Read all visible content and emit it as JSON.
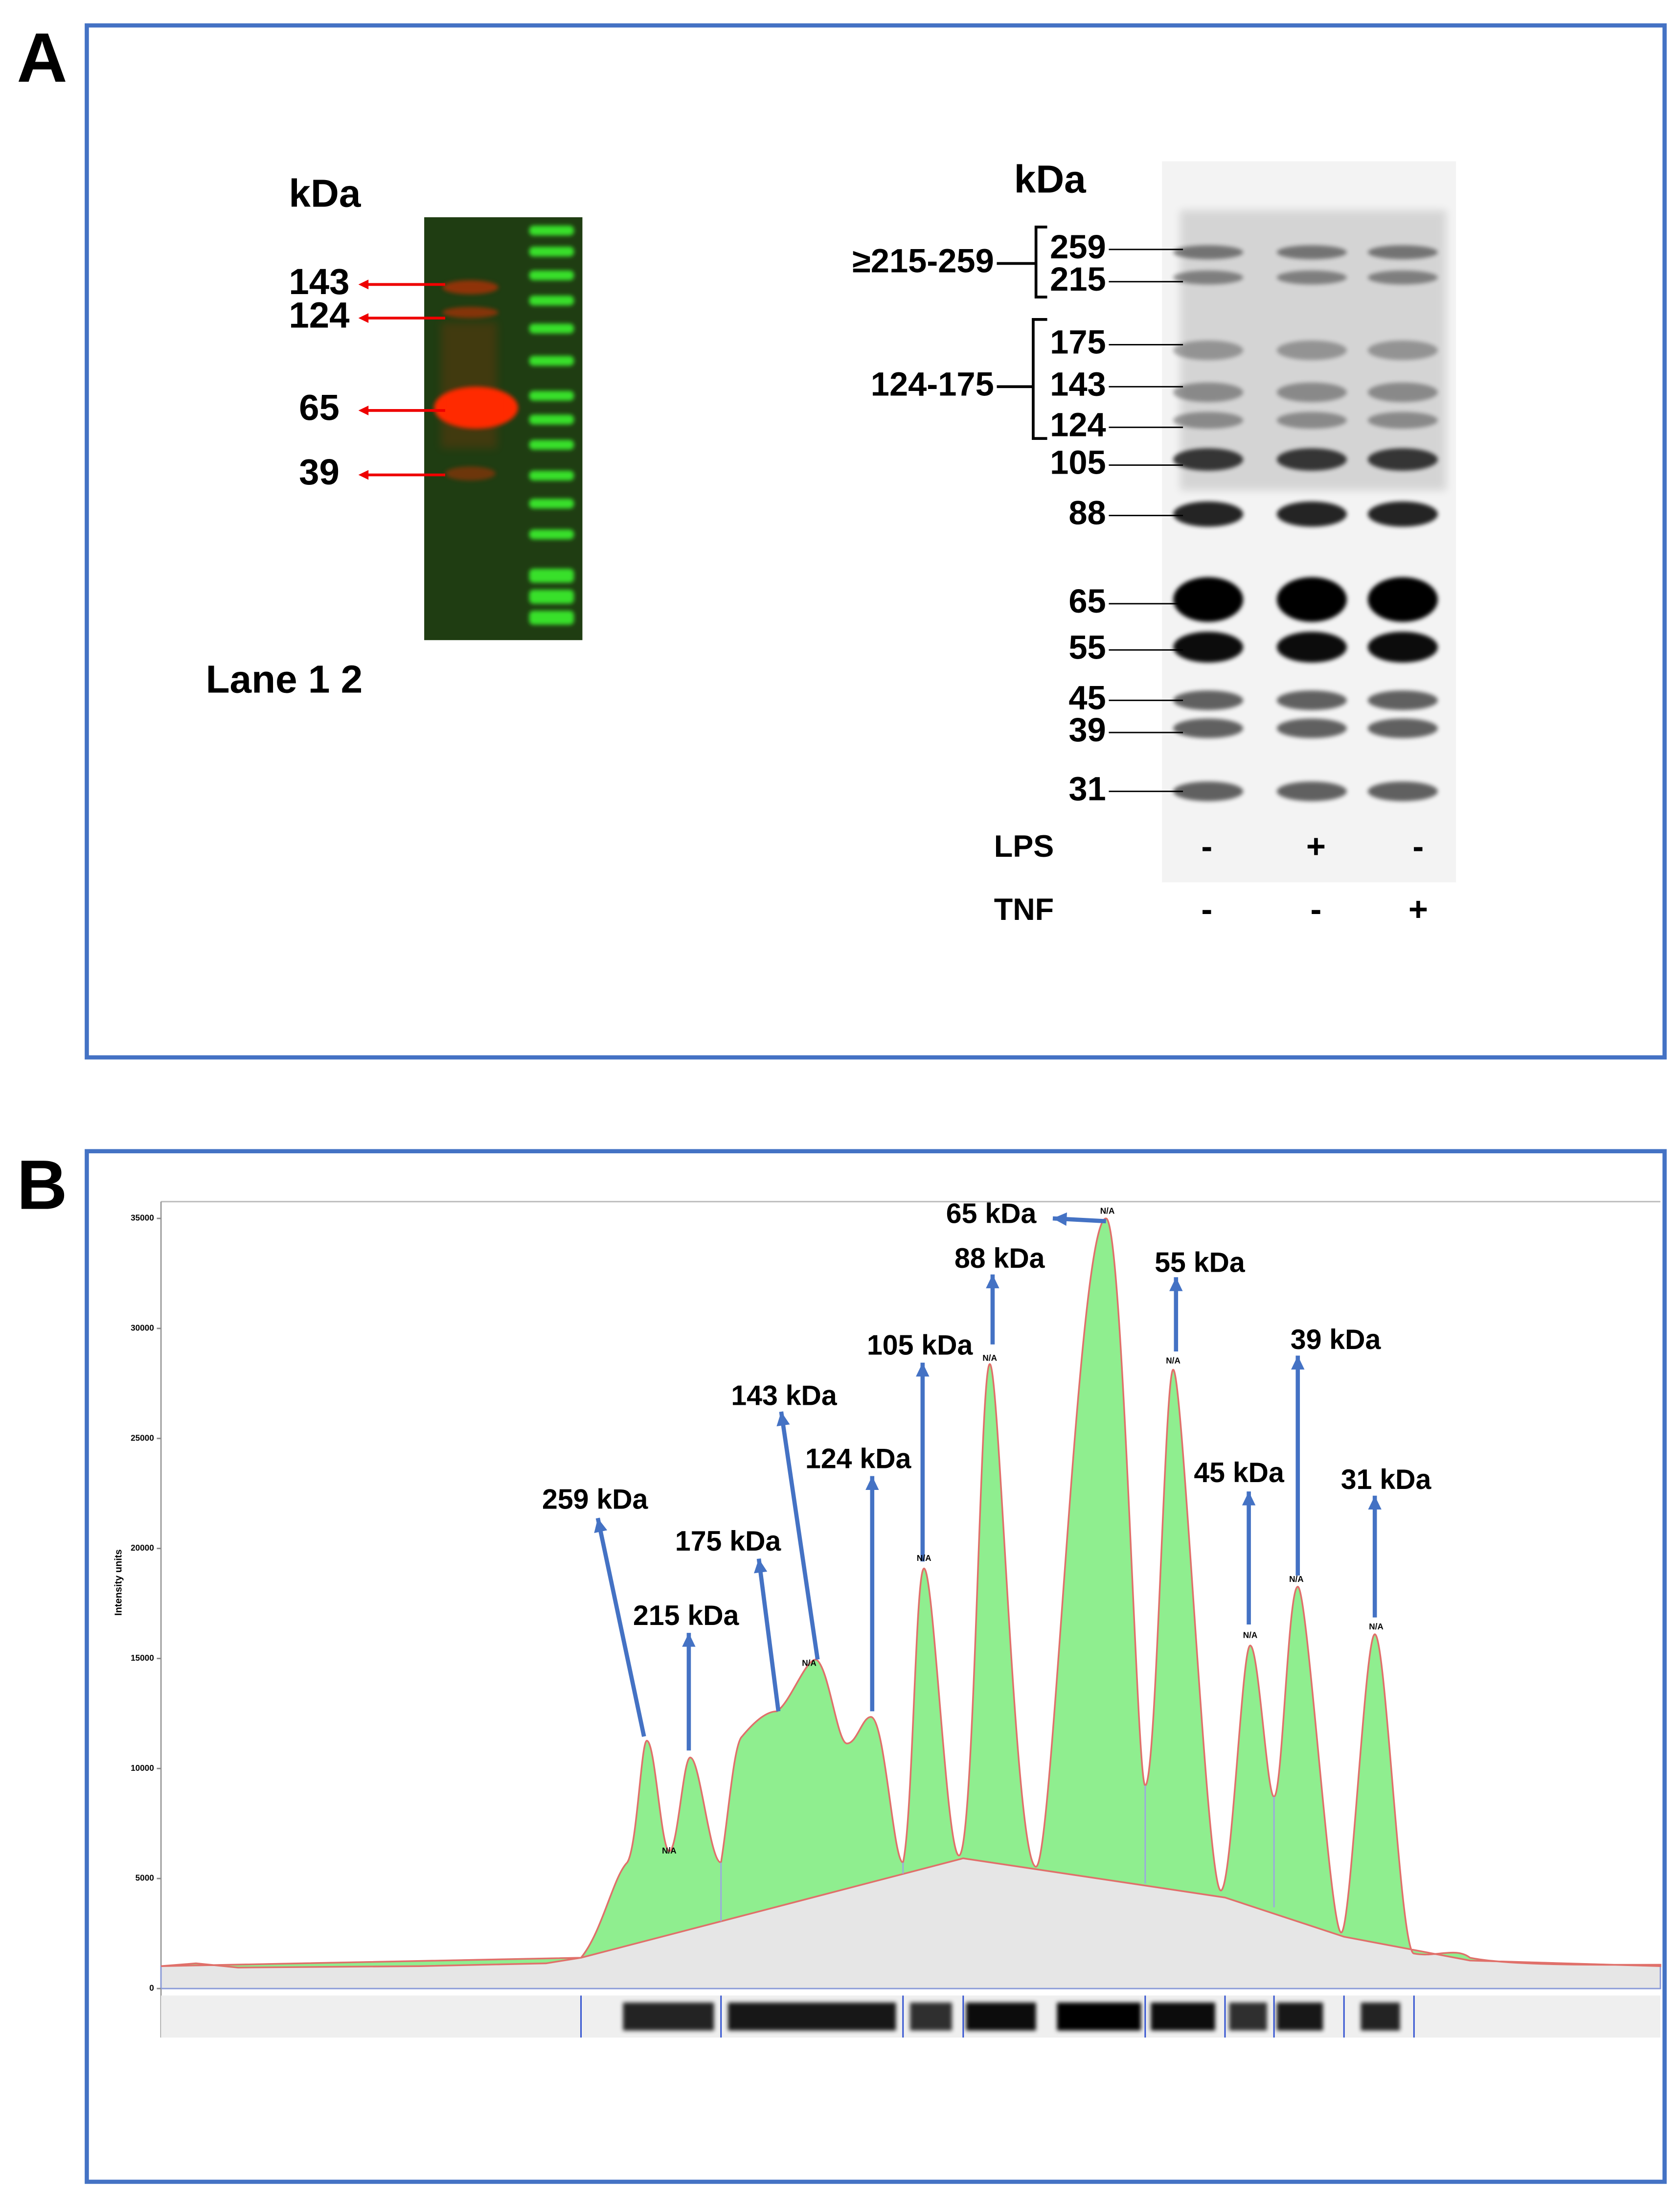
{
  "panel_a": {
    "label": "A",
    "left_blot": {
      "unit": "kDa",
      "markers": [
        143,
        124,
        65,
        39
      ],
      "lane_label": "Lane 1 2"
    },
    "right_blot": {
      "unit": "kDa",
      "groups": [
        "≥215-259",
        "124-175"
      ],
      "markers": [
        259,
        215,
        175,
        143,
        124,
        105,
        88,
        65,
        55,
        45,
        39,
        31
      ],
      "conditions": [
        {
          "name": "LPS",
          "values": [
            "-",
            "+",
            "-"
          ]
        },
        {
          "name": "TNF",
          "values": [
            "-",
            "-",
            "+"
          ]
        }
      ]
    }
  },
  "panel_b": {
    "label": "B",
    "y_axis_label": "Intensity units",
    "ylim": [
      0,
      35000
    ],
    "yticks": [
      0,
      5000,
      10000,
      15000,
      20000,
      25000,
      30000,
      35000
    ],
    "peak_labels": [
      "259 kDa",
      "215 kDa",
      "175 kDa",
      "143 kDa",
      "124 kDa",
      "105 kDa",
      "88 kDa",
      "65 kDa",
      "55 kDa",
      "45 kDa",
      "39 kDa",
      "31 kDa"
    ],
    "peak_flags": [
      "N/A",
      "N/A",
      "N/A",
      "N/A",
      "N/A",
      "N/A",
      "N/A",
      "N/A",
      "N/A"
    ]
  }
}
